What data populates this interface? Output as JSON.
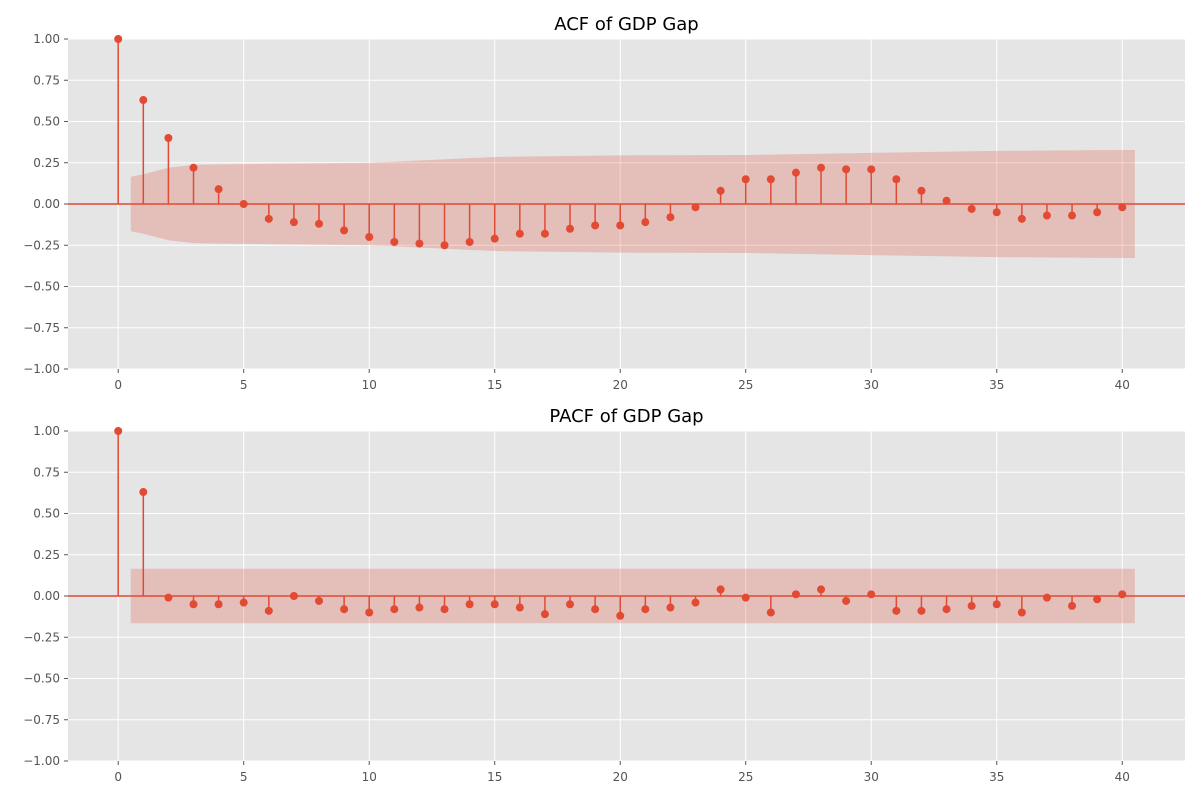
{
  "chart_data": [
    {
      "type": "stem",
      "title": "ACF of GDP Gap",
      "xlabel": "",
      "ylabel": "",
      "xlim": [
        -2,
        42.5
      ],
      "ylim": [
        -1.0,
        1.0
      ],
      "xticks": [
        "0",
        "5",
        "10",
        "15",
        "20",
        "25",
        "30",
        "35",
        "40"
      ],
      "yticks": [
        "1.00",
        "0.75",
        "0.50",
        "0.25",
        "0.00",
        "−0.25",
        "−0.50",
        "−0.75",
        "−1.00"
      ],
      "grid": true,
      "lags": [
        0,
        1,
        2,
        3,
        4,
        5,
        6,
        7,
        8,
        9,
        10,
        11,
        12,
        13,
        14,
        15,
        16,
        17,
        18,
        19,
        20,
        21,
        22,
        23,
        24,
        25,
        26,
        27,
        28,
        29,
        30,
        31,
        32,
        33,
        34,
        35,
        36,
        37,
        38,
        39,
        40
      ],
      "values": [
        1.0,
        0.63,
        0.4,
        0.22,
        0.09,
        0.0,
        -0.09,
        -0.11,
        -0.12,
        -0.16,
        -0.2,
        -0.23,
        -0.24,
        -0.25,
        -0.23,
        -0.21,
        -0.18,
        -0.18,
        -0.15,
        -0.13,
        -0.13,
        -0.11,
        -0.08,
        -0.02,
        0.08,
        0.15,
        0.15,
        0.19,
        0.22,
        0.21,
        0.21,
        0.15,
        0.08,
        0.02,
        -0.03,
        -0.05,
        -0.09,
        -0.07,
        -0.07,
        -0.05,
        -0.02
      ],
      "confidence_band": {
        "lags": [
          0.5,
          1,
          2,
          3,
          4,
          5,
          10,
          15,
          20,
          25,
          30,
          35,
          40,
          40.5
        ],
        "upper": [
          0.165,
          0.18,
          0.22,
          0.237,
          0.24,
          0.242,
          0.25,
          0.285,
          0.295,
          0.297,
          0.31,
          0.322,
          0.327,
          0.327
        ]
      }
    },
    {
      "type": "stem",
      "title": "PACF of GDP Gap",
      "xlabel": "",
      "ylabel": "",
      "xlim": [
        -2,
        42.5
      ],
      "ylim": [
        -1.0,
        1.0
      ],
      "xticks": [
        "0",
        "5",
        "10",
        "15",
        "20",
        "25",
        "30",
        "35",
        "40"
      ],
      "yticks": [
        "1.00",
        "0.75",
        "0.50",
        "0.25",
        "0.00",
        "−0.25",
        "−0.50",
        "−0.75",
        "−1.00"
      ],
      "grid": true,
      "lags": [
        0,
        1,
        2,
        3,
        4,
        5,
        6,
        7,
        8,
        9,
        10,
        11,
        12,
        13,
        14,
        15,
        16,
        17,
        18,
        19,
        20,
        21,
        22,
        23,
        24,
        25,
        26,
        27,
        28,
        29,
        30,
        31,
        32,
        33,
        34,
        35,
        36,
        37,
        38,
        39,
        40
      ],
      "values": [
        1.0,
        0.63,
        -0.01,
        -0.05,
        -0.05,
        -0.04,
        -0.09,
        0.0,
        -0.03,
        -0.08,
        -0.1,
        -0.08,
        -0.07,
        -0.08,
        -0.05,
        -0.05,
        -0.07,
        -0.11,
        -0.05,
        -0.08,
        -0.12,
        -0.08,
        -0.07,
        -0.04,
        0.04,
        -0.01,
        -0.1,
        0.01,
        0.04,
        -0.03,
        0.01,
        -0.09,
        -0.09,
        -0.08,
        -0.06,
        -0.05,
        -0.1,
        -0.01,
        -0.06,
        -0.02,
        0.01
      ],
      "confidence_band": {
        "lags": [
          0.5,
          40.5
        ],
        "upper": [
          0.165,
          0.165
        ]
      }
    }
  ],
  "colors": {
    "stem": "#E24A33",
    "band": "#E24A33",
    "axes_bg": "#E5E5E5",
    "grid": "#FFFFFF",
    "tick_text": "#555555"
  }
}
